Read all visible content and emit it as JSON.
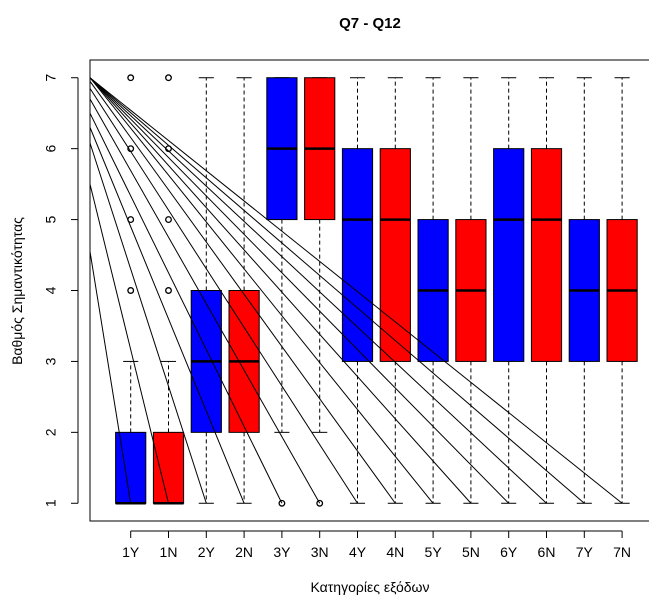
{
  "chart_data": {
    "type": "box",
    "title": "Q7 - Q12",
    "xlabel": "Κατηγορίες εξόδων",
    "ylabel": "Βαθμός Σημαντικότητας",
    "ylim": [
      0.75,
      7.25
    ],
    "yticks": [
      1,
      2,
      3,
      4,
      5,
      6,
      7
    ],
    "categories": [
      "1Y",
      "1N",
      "2Y",
      "2N",
      "3Y",
      "3N",
      "4Y",
      "4N",
      "5Y",
      "5N",
      "6Y",
      "6N",
      "7Y",
      "7N"
    ],
    "colors": {
      "Y": "#0000ff",
      "N": "#ff0000",
      "outline": "#000000"
    },
    "boxes": [
      {
        "category": "1Y",
        "whisker_low": 1,
        "q1": 1,
        "median": 1,
        "q3": 2,
        "whisker_high": 3,
        "outliers": [
          4,
          5,
          6,
          7
        ]
      },
      {
        "category": "1N",
        "whisker_low": 1,
        "q1": 1,
        "median": 1,
        "q3": 2,
        "whisker_high": 3,
        "outliers": [
          4,
          5,
          6,
          7
        ]
      },
      {
        "category": "2Y",
        "whisker_low": 1,
        "q1": 2,
        "median": 3,
        "q3": 4,
        "whisker_high": 7,
        "outliers": []
      },
      {
        "category": "2N",
        "whisker_low": 1,
        "q1": 2,
        "median": 3,
        "q3": 4,
        "whisker_high": 7,
        "outliers": []
      },
      {
        "category": "3Y",
        "whisker_low": 2,
        "q1": 5,
        "median": 6,
        "q3": 7,
        "whisker_high": 7,
        "outliers": [
          1
        ]
      },
      {
        "category": "3N",
        "whisker_low": 2,
        "q1": 5,
        "median": 6,
        "q3": 7,
        "whisker_high": 7,
        "outliers": [
          1
        ]
      },
      {
        "category": "4Y",
        "whisker_low": 1,
        "q1": 3,
        "median": 5,
        "q3": 6,
        "whisker_high": 7,
        "outliers": []
      },
      {
        "category": "4N",
        "whisker_low": 1,
        "q1": 3,
        "median": 5,
        "q3": 6,
        "whisker_high": 7,
        "outliers": []
      },
      {
        "category": "5Y",
        "whisker_low": 1,
        "q1": 3,
        "median": 4,
        "q3": 5,
        "whisker_high": 7,
        "outliers": []
      },
      {
        "category": "5N",
        "whisker_low": 1,
        "q1": 3,
        "median": 4,
        "q3": 5,
        "whisker_high": 7,
        "outliers": []
      },
      {
        "category": "6Y",
        "whisker_low": 1,
        "q1": 3,
        "median": 5,
        "q3": 6,
        "whisker_high": 7,
        "outliers": []
      },
      {
        "category": "6N",
        "whisker_low": 1,
        "q1": 3,
        "median": 5,
        "q3": 6,
        "whisker_high": 7,
        "outliers": []
      },
      {
        "category": "7Y",
        "whisker_low": 1,
        "q1": 3,
        "median": 4,
        "q3": 5,
        "whisker_high": 7,
        "outliers": []
      },
      {
        "category": "7N",
        "whisker_low": 1,
        "q1": 3,
        "median": 4,
        "q3": 5,
        "whisker_high": 7,
        "outliers": []
      }
    ],
    "overlay_lines": {
      "description_shown": false,
      "left_edge_values": [
        4.55,
        5.5,
        6.08,
        6.3,
        6.5,
        6.7,
        6.85,
        6.95,
        7.0,
        7.0,
        7.0,
        7.0,
        7.0,
        7.0
      ],
      "end_value": 1
    }
  }
}
